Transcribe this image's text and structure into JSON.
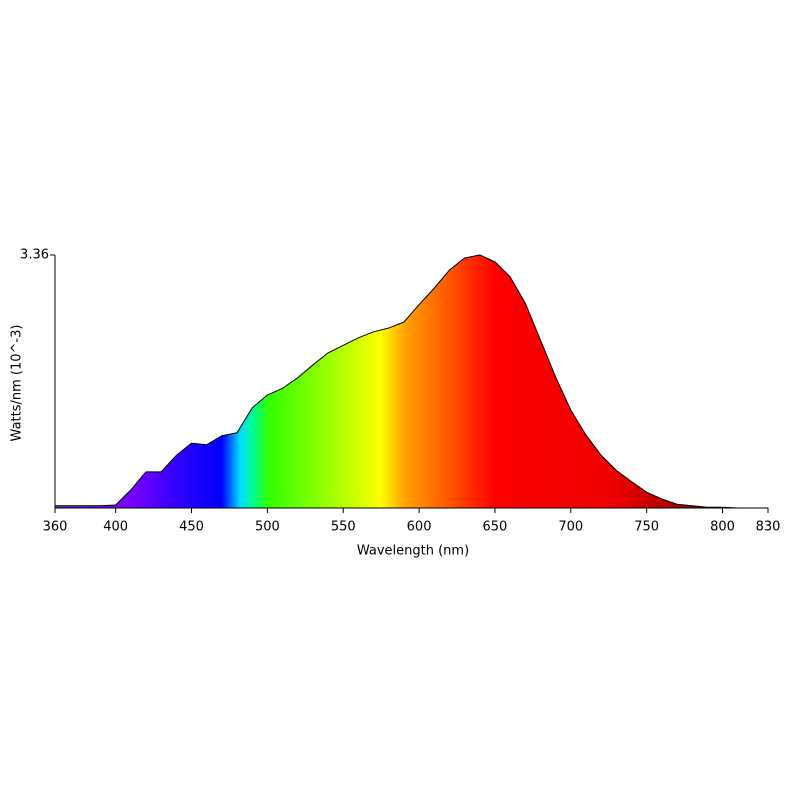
{
  "chart_data": {
    "type": "area",
    "x_label": "Wavelength (nm)",
    "y_label": "Watts/nm (10^-3)",
    "x": [
      360,
      370,
      380,
      390,
      400,
      410,
      420,
      430,
      440,
      450,
      460,
      470,
      480,
      490,
      500,
      510,
      520,
      530,
      540,
      550,
      560,
      570,
      580,
      590,
      600,
      610,
      620,
      630,
      640,
      650,
      660,
      670,
      680,
      690,
      700,
      710,
      720,
      730,
      740,
      750,
      760,
      770,
      780,
      790,
      800,
      810,
      820,
      830
    ],
    "values": [
      0.03,
      0.03,
      0.03,
      0.03,
      0.04,
      0.24,
      0.48,
      0.48,
      0.7,
      0.86,
      0.84,
      0.96,
      1.0,
      1.33,
      1.5,
      1.59,
      1.73,
      1.9,
      2.06,
      2.16,
      2.26,
      2.34,
      2.39,
      2.47,
      2.7,
      2.92,
      3.16,
      3.32,
      3.36,
      3.27,
      3.07,
      2.72,
      2.23,
      1.74,
      1.3,
      0.97,
      0.7,
      0.5,
      0.35,
      0.21,
      0.12,
      0.05,
      0.03,
      0.01,
      0.01,
      0,
      0,
      0
    ],
    "xlim": [
      360,
      830
    ],
    "xticks": [
      360,
      400,
      450,
      500,
      550,
      600,
      650,
      700,
      750,
      800,
      830
    ],
    "ylim": [
      0,
      3.36
    ],
    "yticks": [
      3.36
    ]
  }
}
